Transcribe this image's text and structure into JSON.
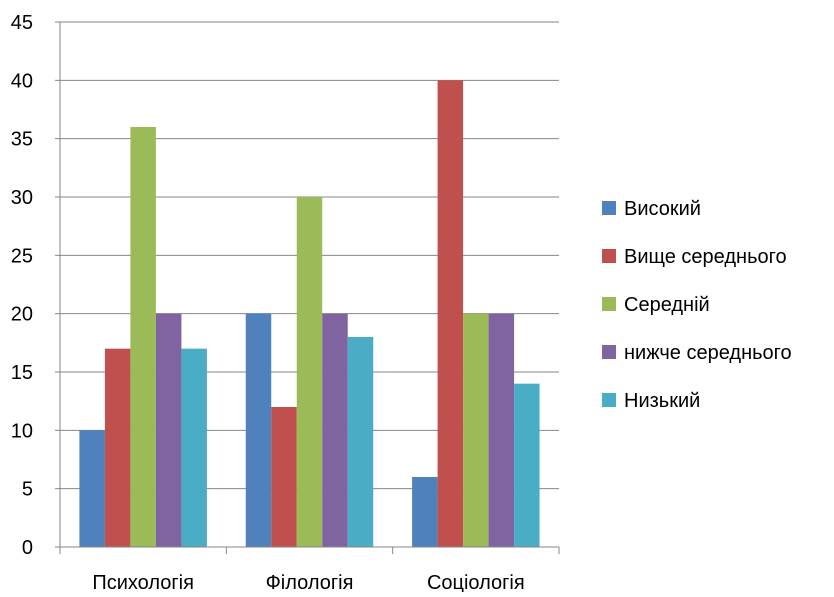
{
  "chart_data": {
    "type": "bar",
    "categories": [
      "Психологія",
      "Філологія",
      "Соціологія"
    ],
    "series": [
      {
        "name": "Високий",
        "values": [
          10,
          20,
          6
        ],
        "color": "#4F81BD"
      },
      {
        "name": "Вище середнього",
        "values": [
          17,
          12,
          40
        ],
        "color": "#C0504D"
      },
      {
        "name": "Середній",
        "values": [
          36,
          30,
          20
        ],
        "color": "#9BBB59"
      },
      {
        "name": "нижче середнього",
        "values": [
          20,
          20,
          20
        ],
        "color": "#8064A2"
      },
      {
        "name": "Низький",
        "values": [
          17,
          18,
          14
        ],
        "color": "#4BACC6"
      }
    ],
    "ylim": [
      0,
      45
    ],
    "yticks": [
      0,
      5,
      10,
      15,
      20,
      25,
      30,
      35,
      40,
      45
    ],
    "grid": true,
    "legend": "right"
  }
}
